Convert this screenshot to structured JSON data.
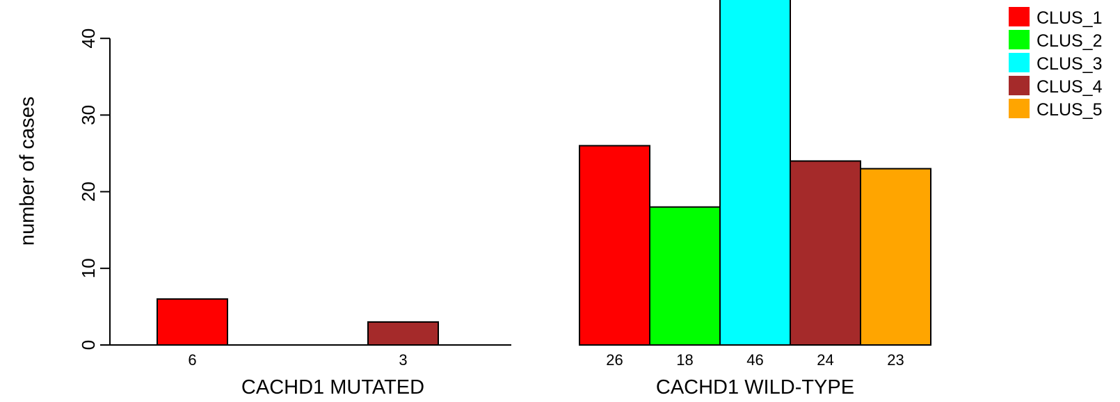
{
  "chart_data": {
    "type": "bar",
    "ylabel": "number of cases",
    "ylim": [
      0,
      45
    ],
    "yticks": [
      0,
      10,
      20,
      30,
      40
    ],
    "grid": false,
    "legend_position": "top-right",
    "series": [
      {
        "name": "CLUS_1",
        "color": "#FF0000"
      },
      {
        "name": "CLUS_2",
        "color": "#00FF00"
      },
      {
        "name": "CLUS_3",
        "color": "#00FFFF"
      },
      {
        "name": "CLUS_4",
        "color": "#A52A2A"
      },
      {
        "name": "CLUS_5",
        "color": "#FFA500"
      }
    ],
    "groups": [
      {
        "label": "CACHD1 MUTATED",
        "values": [
          6,
          0,
          0,
          3,
          0
        ],
        "labels": [
          "6",
          "",
          "",
          "3",
          ""
        ]
      },
      {
        "label": "CACHD1 WILD-TYPE",
        "values": [
          26,
          18,
          46,
          24,
          23
        ],
        "labels": [
          "26",
          "18",
          "46",
          "24",
          "23"
        ]
      }
    ]
  }
}
